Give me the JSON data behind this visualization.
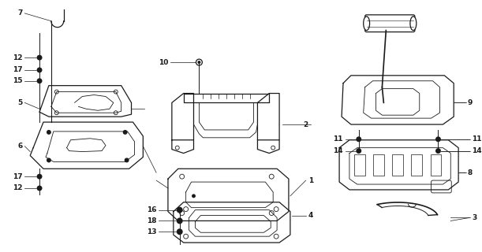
{
  "bg_color": "#ffffff",
  "line_color": "#1a1a1a",
  "fig_width": 6.11,
  "fig_height": 3.2,
  "dpi": 100
}
